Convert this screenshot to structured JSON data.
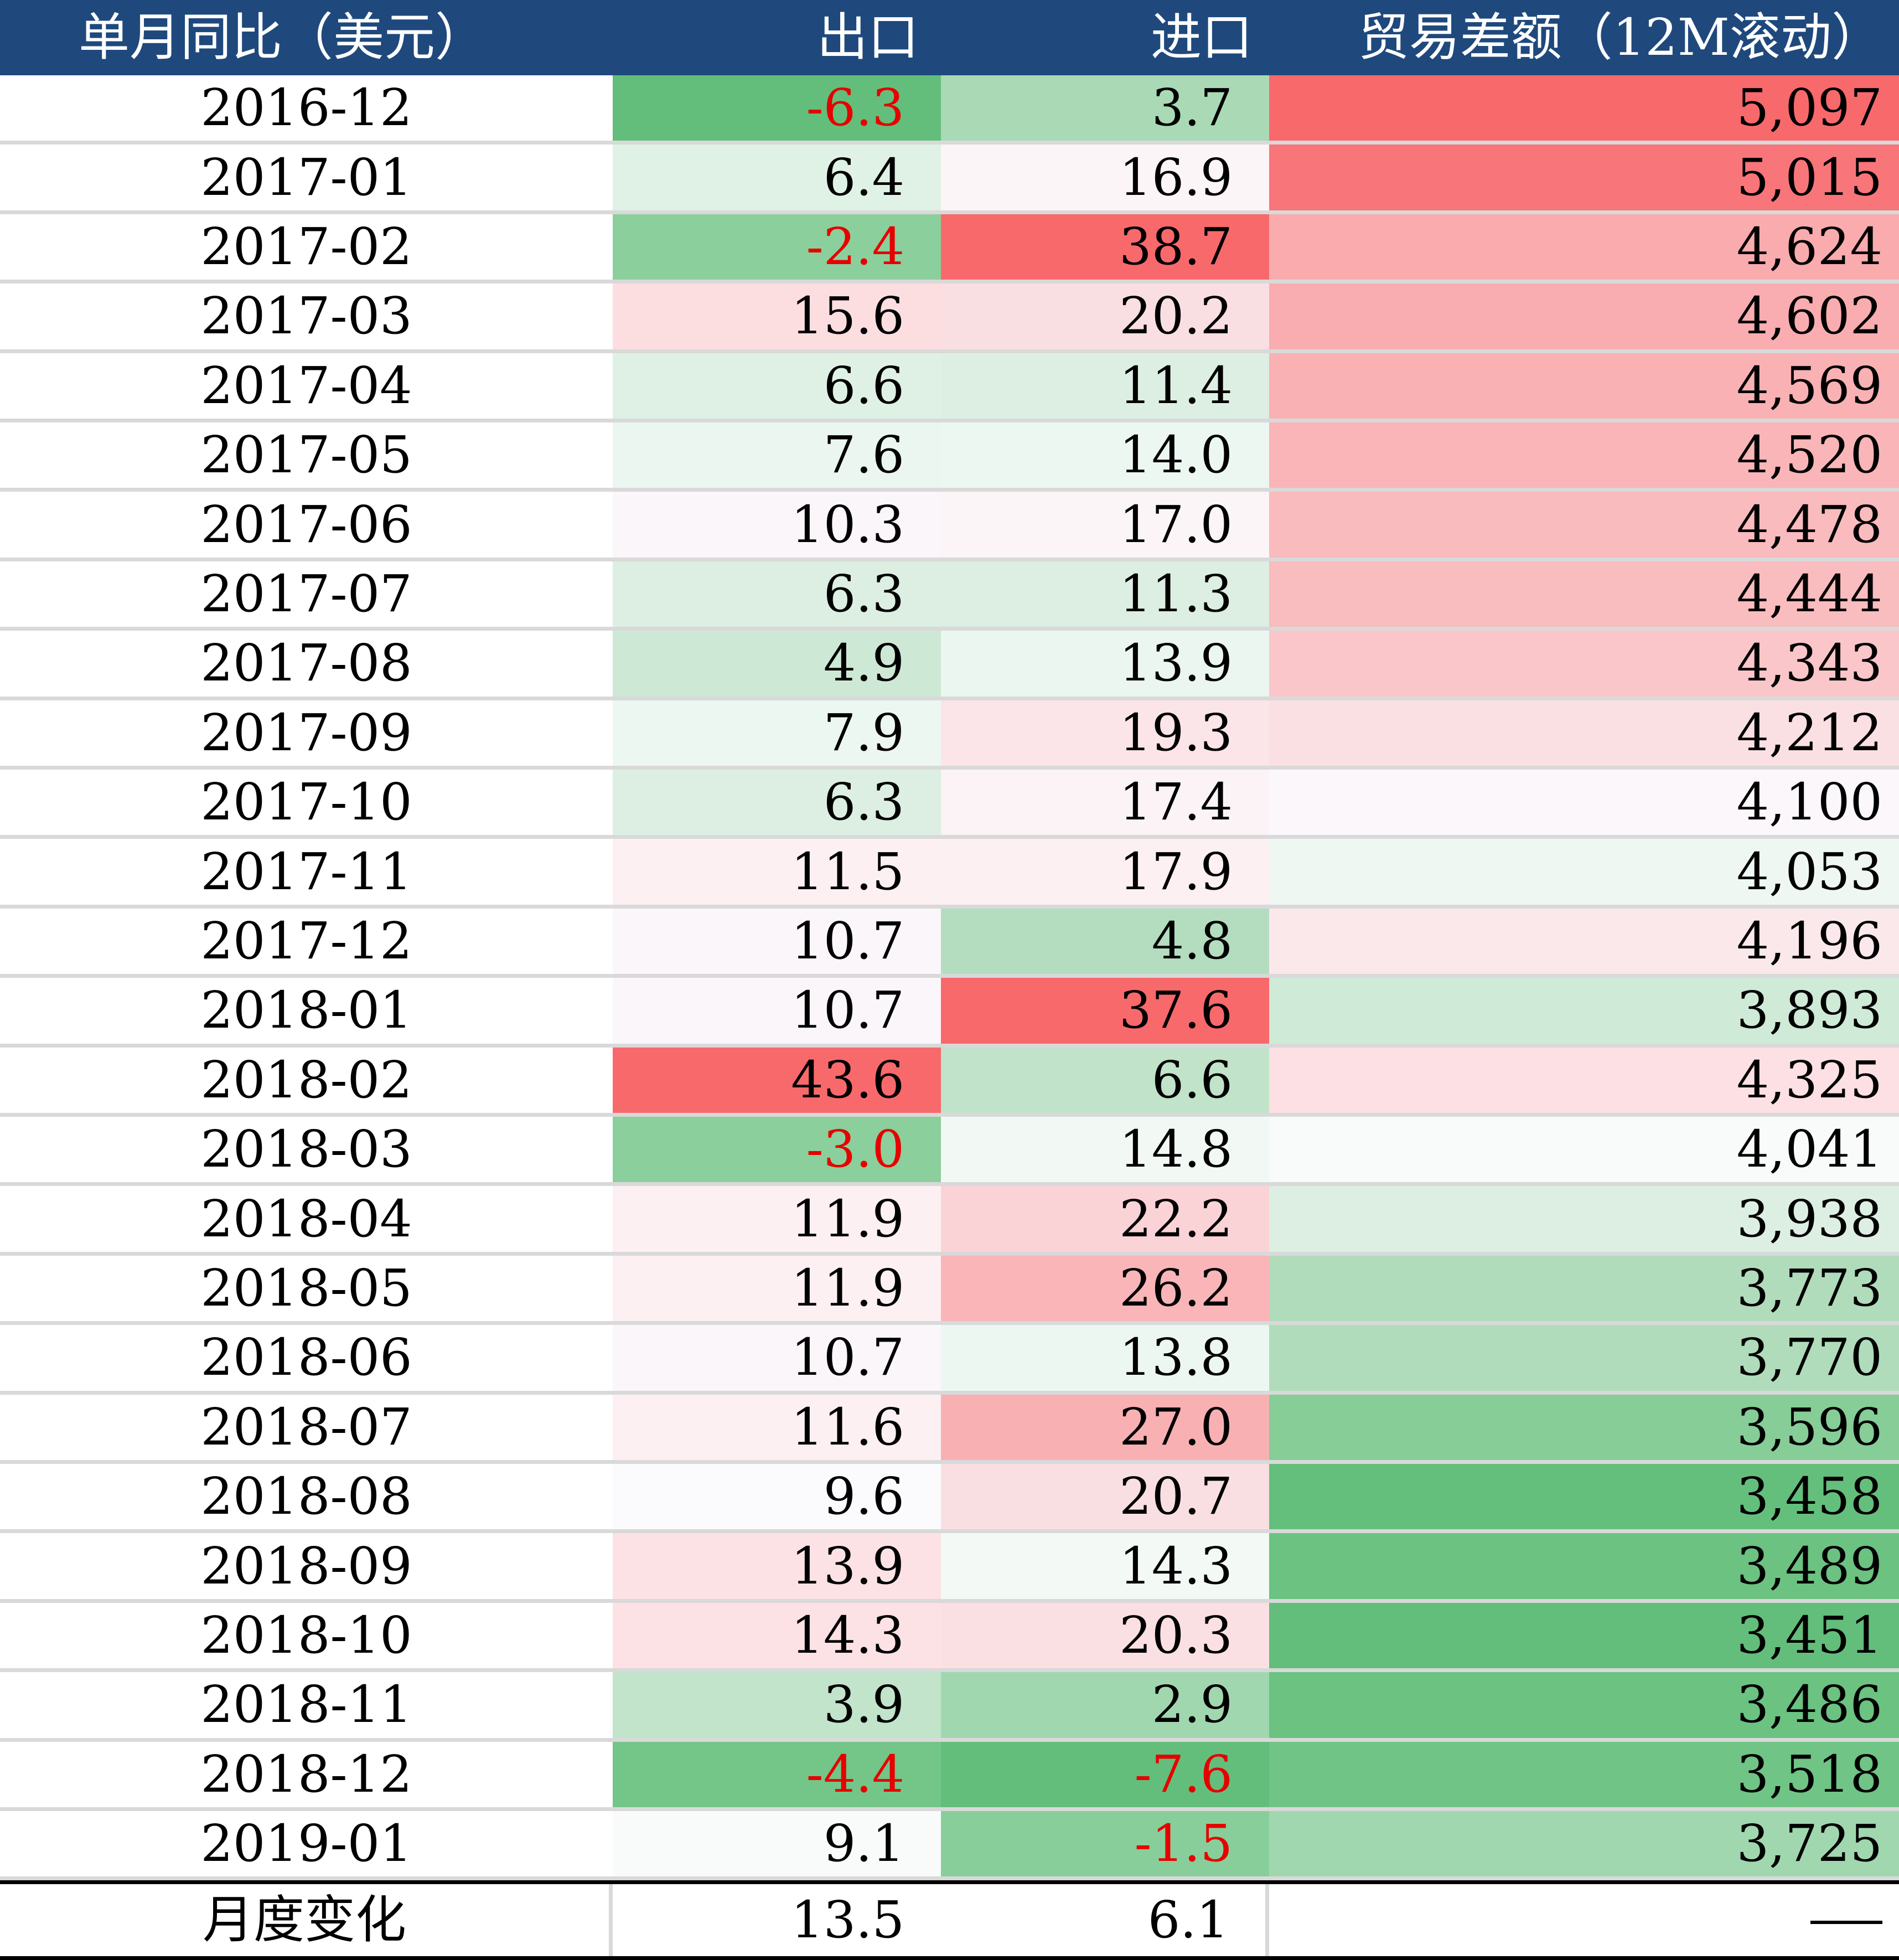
{
  "table": {
    "headers": [
      "单月同比（美元）",
      "出口",
      "进口",
      "贸易差额（12M滚动）"
    ],
    "rows": [
      [
        "2016-12",
        "-6.3",
        "3.7",
        "5,097"
      ],
      [
        "2017-01",
        "6.4",
        "16.9",
        "5,015"
      ],
      [
        "2017-02",
        "-2.4",
        "38.7",
        "4,624"
      ],
      [
        "2017-03",
        "15.6",
        "20.2",
        "4,602"
      ],
      [
        "2017-04",
        "6.6",
        "11.4",
        "4,569"
      ],
      [
        "2017-05",
        "7.6",
        "14.0",
        "4,520"
      ],
      [
        "2017-06",
        "10.3",
        "17.0",
        "4,478"
      ],
      [
        "2017-07",
        "6.3",
        "11.3",
        "4,444"
      ],
      [
        "2017-08",
        "4.9",
        "13.9",
        "4,343"
      ],
      [
        "2017-09",
        "7.9",
        "19.3",
        "4,212"
      ],
      [
        "2017-10",
        "6.3",
        "17.4",
        "4,100"
      ],
      [
        "2017-11",
        "11.5",
        "17.9",
        "4,053"
      ],
      [
        "2017-12",
        "10.7",
        "4.8",
        "4,196"
      ],
      [
        "2018-01",
        "10.7",
        "37.6",
        "3,893"
      ],
      [
        "2018-02",
        "43.6",
        "6.6",
        "4,325"
      ],
      [
        "2018-03",
        "-3.0",
        "14.8",
        "4,041"
      ],
      [
        "2018-04",
        "11.9",
        "22.2",
        "3,938"
      ],
      [
        "2018-05",
        "11.9",
        "26.2",
        "3,773"
      ],
      [
        "2018-06",
        "10.7",
        "13.8",
        "3,770"
      ],
      [
        "2018-07",
        "11.6",
        "27.0",
        "3,596"
      ],
      [
        "2018-08",
        "9.6",
        "20.7",
        "3,458"
      ],
      [
        "2018-09",
        "13.9",
        "14.3",
        "3,489"
      ],
      [
        "2018-10",
        "14.3",
        "20.3",
        "3,451"
      ],
      [
        "2018-11",
        "3.9",
        "2.9",
        "3,486"
      ],
      [
        "2018-12",
        "-4.4",
        "-7.6",
        "3,518"
      ],
      [
        "2019-01",
        "9.1",
        "-1.5",
        "3,725"
      ]
    ],
    "fills": [
      [
        "#63be7b",
        "#a9dab5",
        "#f8696b"
      ],
      [
        "#e0f1e5",
        "#fbf5f8",
        "#f8757a"
      ],
      [
        "#8bcf9c",
        "#f8696b",
        "#f9abae"
      ],
      [
        "#fcdee1",
        "#fadfe2",
        "#f9adb0"
      ],
      [
        "#dff1e4",
        "#ddefe2",
        "#f9b1b4"
      ],
      [
        "#ebf6f0",
        "#edf7f2",
        "#f9b5b8"
      ],
      [
        "#fbf6f9",
        "#fbf5f8",
        "#f9bbbe"
      ],
      [
        "#dcefe2",
        "#dcefe2",
        "#f9bcbf"
      ],
      [
        "#cde9d5",
        "#ebf6f0",
        "#fac6c9"
      ],
      [
        "#edf7f2",
        "#fbe5e8",
        "#fbe0e3"
      ],
      [
        "#dcefe2",
        "#fbf3f6",
        "#fcf7fa"
      ],
      [
        "#fcf0f3",
        "#fcf0f3",
        "#eef7f2"
      ],
      [
        "#fbf6f9",
        "#b3ddbe",
        "#fbe8eb"
      ],
      [
        "#fbf6f9",
        "#f8696b",
        "#cfead7"
      ],
      [
        "#f8696b",
        "#c0e3c9",
        "#fce0e3"
      ],
      [
        "#8bcf9c",
        "#f2f9f5",
        "#f8fbf9"
      ],
      [
        "#fcf0f3",
        "#fad3d6",
        "#ddefe2"
      ],
      [
        "#fcf0f3",
        "#f9b5b8",
        "#b0dcbb"
      ],
      [
        "#fbf6f9",
        "#edf7f2",
        "#b0dcbb"
      ],
      [
        "#fcf0f3",
        "#f9b0b3",
        "#86cd98"
      ],
      [
        "#fbfbfd",
        "#fadfe2",
        "#65bf7c"
      ],
      [
        "#fce2e5",
        "#f3faf6",
        "#6bc281"
      ],
      [
        "#fce2e5",
        "#fbe0e3",
        "#63be7b"
      ],
      [
        "#c1e4ca",
        "#a1d7af",
        "#6bc281"
      ],
      [
        "#74c588",
        "#63be7b",
        "#70c485"
      ],
      [
        "#f9fbfb",
        "#88ce9a",
        "#a1d7af"
      ]
    ],
    "footer": [
      "月度变化",
      "13.5",
      "6.1",
      "——"
    ]
  }
}
